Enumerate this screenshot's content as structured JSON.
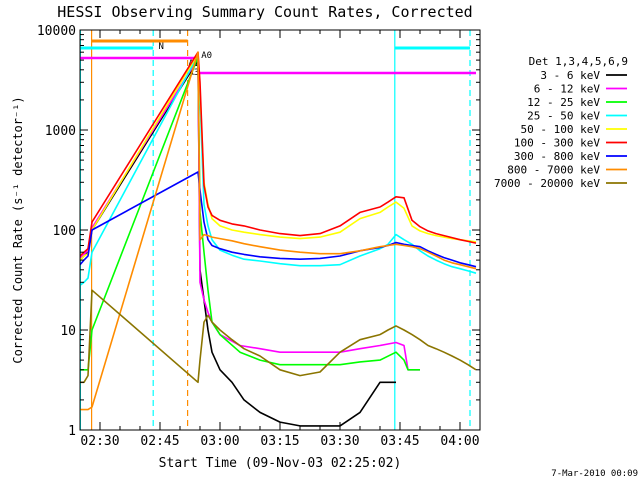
{
  "chart_data": {
    "type": "line",
    "title": "HESSI Observing Summary Count Rates, Corrected",
    "xlabel": "Start Time (09-Nov-03 02:25:02)",
    "ylabel": "Corrected Count Rate (s⁻¹ detector⁻¹)",
    "ylog": true,
    "ylim": [
      1,
      10000
    ],
    "xlim_min": [
      25,
      125
    ],
    "x_ticks": [
      {
        "min": 30,
        "label": "02:30"
      },
      {
        "min": 45,
        "label": "02:45"
      },
      {
        "min": 60,
        "label": "03:00"
      },
      {
        "min": 75,
        "label": "03:15"
      },
      {
        "min": 90,
        "label": "03:30"
      },
      {
        "min": 105,
        "label": "03:45"
      },
      {
        "min": 120,
        "label": "04:00"
      }
    ],
    "y_ticks": [
      {
        "value": 1,
        "label": "1"
      },
      {
        "value": 10,
        "label": "10"
      },
      {
        "value": 100,
        "label": "100"
      },
      {
        "value": 1000,
        "label": "1000"
      },
      {
        "value": 10000,
        "label": "10000"
      }
    ],
    "legend_title": "Det 1,3,4,5,6,9",
    "legend_position": "right",
    "series": [
      {
        "name": "3 - 6 keV",
        "color": "#000000",
        "x": [
          25,
          26,
          27,
          28,
          54.5,
          55,
          56,
          57,
          58,
          60,
          63,
          66,
          70,
          75,
          80,
          90,
          95,
          100,
          104
        ],
        "y": [
          50,
          55,
          60,
          100,
          5000,
          40,
          20,
          10,
          6,
          4,
          3,
          2,
          1.5,
          1.2,
          1.1,
          1.1,
          1.5,
          3,
          3
        ]
      },
      {
        "name": "6 - 12 keV",
        "color": "#ff00ff",
        "x": [
          25,
          26,
          27,
          28,
          54.5,
          55,
          56,
          57,
          58,
          60,
          65,
          70,
          75,
          80,
          90,
          95,
          100,
          104,
          106,
          107,
          108,
          110
        ],
        "y": [
          52,
          57,
          63,
          105,
          5200,
          30,
          20,
          15,
          12,
          9,
          7,
          6.5,
          6,
          6,
          6,
          6.5,
          7,
          7.5,
          7,
          4,
          4,
          4
        ]
      },
      {
        "name": "12 - 25 keV",
        "color": "#00ff00",
        "x": [
          25,
          26,
          27,
          28,
          54.5,
          55,
          56,
          57,
          58,
          60,
          65,
          70,
          75,
          80,
          90,
          95,
          100,
          104,
          106,
          107,
          108,
          110
        ],
        "y": [
          4,
          4,
          4,
          10,
          5400,
          150,
          60,
          25,
          12,
          9,
          6,
          5,
          4.5,
          4.5,
          4.5,
          4.8,
          5,
          6,
          5,
          4,
          4,
          4
        ]
      },
      {
        "name": "25 - 50 keV",
        "color": "#00ffff",
        "x": [
          25,
          26,
          27,
          28,
          54.5,
          55,
          56,
          57,
          58,
          60,
          63,
          66,
          70,
          75,
          80,
          85,
          90,
          95,
          100,
          102,
          104,
          106,
          108,
          110,
          112,
          114,
          116,
          118,
          120,
          122,
          124
        ],
        "y": [
          28,
          30,
          33,
          60,
          5600,
          2000,
          180,
          110,
          80,
          63,
          56,
          51,
          49,
          46,
          44,
          44,
          45,
          55,
          65,
          72,
          90,
          80,
          72,
          62,
          55,
          50,
          46,
          43,
          41,
          39,
          37
        ]
      },
      {
        "name": "50 - 100 keV",
        "color": "#ffff00",
        "x": [
          25,
          26,
          27,
          28,
          54.5,
          55,
          56,
          57,
          58,
          60,
          63,
          66,
          70,
          75,
          80,
          85,
          90,
          95,
          100,
          102,
          104,
          106,
          108,
          110,
          112,
          114,
          116,
          118,
          120,
          122,
          124
        ],
        "y": [
          50,
          55,
          58,
          100,
          5800,
          2500,
          300,
          180,
          130,
          110,
          100,
          95,
          90,
          85,
          82,
          85,
          95,
          130,
          150,
          170,
          190,
          165,
          110,
          98,
          92,
          88,
          85,
          82,
          80,
          78,
          76
        ]
      },
      {
        "name": "100 - 300 keV",
        "color": "#ff0000",
        "x": [
          25,
          26,
          27,
          28,
          54.5,
          55,
          56,
          57,
          58,
          60,
          63,
          66,
          70,
          75,
          80,
          85,
          90,
          95,
          100,
          102,
          104,
          106,
          108,
          110,
          112,
          114,
          116,
          118,
          120,
          122,
          124
        ],
        "y": [
          55,
          60,
          65,
          120,
          6000,
          3000,
          280,
          170,
          140,
          125,
          115,
          110,
          100,
          92,
          88,
          92,
          110,
          150,
          170,
          190,
          215,
          210,
          125,
          108,
          98,
          92,
          88,
          84,
          80,
          77,
          74
        ]
      },
      {
        "name": "300 - 800 keV",
        "color": "#0000ff",
        "x": [
          25,
          26,
          27,
          28,
          54.5,
          55,
          56,
          57,
          58,
          60,
          63,
          66,
          70,
          75,
          80,
          85,
          90,
          95,
          100,
          102,
          104,
          106,
          108,
          110,
          112,
          114,
          116,
          118,
          120,
          122,
          124
        ],
        "y": [
          45,
          50,
          55,
          100,
          380,
          250,
          120,
          80,
          70,
          65,
          60,
          57,
          54,
          52,
          51,
          52,
          55,
          62,
          67,
          70,
          75,
          72,
          70,
          68,
          62,
          57,
          53,
          50,
          47,
          45,
          43
        ]
      },
      {
        "name": "800 - 7000 keV",
        "color": "#ff8c00",
        "x": [
          25,
          26,
          27,
          28,
          54.5,
          55,
          56,
          57,
          58,
          60,
          63,
          66,
          70,
          75,
          80,
          85,
          90,
          95,
          100,
          102,
          104,
          106,
          108,
          110,
          112,
          114,
          116,
          118,
          120,
          122,
          124
        ],
        "y": [
          1.6,
          1.6,
          1.6,
          1.7,
          6000,
          80,
          90,
          88,
          85,
          82,
          78,
          73,
          68,
          63,
          60,
          58,
          58,
          62,
          68,
          70,
          72,
          70,
          68,
          65,
          60,
          55,
          50,
          47,
          45,
          43,
          41
        ]
      },
      {
        "name": "7000 - 20000 keV",
        "color": "#8b7500",
        "x": [
          25,
          26,
          27,
          28,
          54.5,
          55,
          56,
          57,
          58,
          60,
          63,
          66,
          70,
          75,
          80,
          85,
          90,
          95,
          100,
          102,
          104,
          106,
          108,
          110,
          112,
          114,
          116,
          118,
          120,
          122,
          124
        ],
        "y": [
          3,
          3,
          3.5,
          25,
          3,
          5,
          12,
          14,
          12,
          10,
          8,
          6.5,
          5.5,
          4,
          3.5,
          3.8,
          6,
          8,
          9,
          10,
          11,
          10,
          9,
          8,
          7,
          6.5,
          6,
          5.5,
          5,
          4.5,
          4
        ]
      }
    ],
    "markers": [
      {
        "label": "N",
        "color": "#00ffff"
      },
      {
        "label": "A0",
        "color": "#ff00ff"
      },
      {
        "label": "A1",
        "color": "#ff00ff"
      },
      {
        "label": "A3",
        "color": "#ff00ff"
      }
    ],
    "footer": "7-Mar-2010 00:09"
  }
}
